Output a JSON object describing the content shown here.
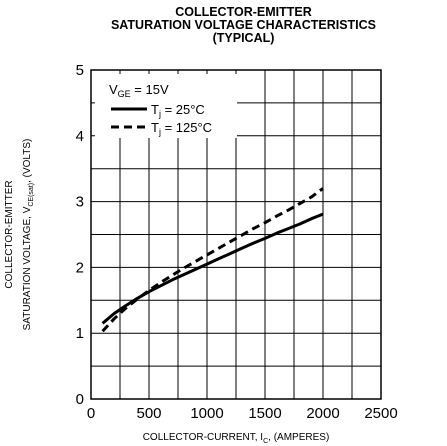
{
  "chart_data": {
    "type": "line",
    "title": [
      "COLLECTOR-EMITTER",
      "SATURATION VOLTAGE CHARACTERISTICS",
      "(TYPICAL)"
    ],
    "xlabel": {
      "main": "COLLECTOR-CURRENT, I",
      "sub": "C",
      "tail": ", (AMPERES)"
    },
    "ylabel": {
      "line1": "COLLECTOR-EMITTER",
      "line2_main": "SATURATION VOLTAGE, V",
      "line2_sub": "CE(sat)",
      "line2_tail": ", (VOLTS)"
    },
    "xlim": [
      0,
      2500
    ],
    "ylim": [
      0,
      5
    ],
    "x_ticks": [
      "0",
      "500",
      "1000",
      "1500",
      "2000",
      "2500"
    ],
    "y_ticks": [
      "0",
      "1",
      "2",
      "3",
      "4",
      "5"
    ],
    "grid": true,
    "legend_position": "top-left",
    "legend_header": {
      "main": "V",
      "sub": "GE",
      "tail": " = 15V"
    },
    "series": [
      {
        "name": {
          "main": "T",
          "sub": "j",
          "tail": " = 25°C"
        },
        "style": "solid",
        "points": [
          [
            100,
            1.15
          ],
          [
            200,
            1.3
          ],
          [
            300,
            1.42
          ],
          [
            400,
            1.53
          ],
          [
            500,
            1.63
          ],
          [
            600,
            1.72
          ],
          [
            700,
            1.81
          ],
          [
            800,
            1.89
          ],
          [
            900,
            1.97
          ],
          [
            1000,
            2.05
          ],
          [
            1100,
            2.13
          ],
          [
            1200,
            2.21
          ],
          [
            1300,
            2.29
          ],
          [
            1400,
            2.37
          ],
          [
            1500,
            2.44
          ],
          [
            1600,
            2.52
          ],
          [
            1700,
            2.59
          ],
          [
            1800,
            2.66
          ],
          [
            1900,
            2.74
          ],
          [
            2000,
            2.81
          ]
        ]
      },
      {
        "name": {
          "main": "T",
          "sub": "j",
          "tail": " = 125°C"
        },
        "style": "dashed",
        "points": [
          [
            100,
            1.03
          ],
          [
            200,
            1.22
          ],
          [
            300,
            1.38
          ],
          [
            400,
            1.52
          ],
          [
            500,
            1.65
          ],
          [
            600,
            1.77
          ],
          [
            700,
            1.88
          ],
          [
            800,
            1.99
          ],
          [
            900,
            2.09
          ],
          [
            1000,
            2.19
          ],
          [
            1100,
            2.29
          ],
          [
            1200,
            2.39
          ],
          [
            1300,
            2.49
          ],
          [
            1400,
            2.59
          ],
          [
            1500,
            2.68
          ],
          [
            1600,
            2.78
          ],
          [
            1700,
            2.87
          ],
          [
            1800,
            2.97
          ],
          [
            1900,
            3.07
          ],
          [
            2000,
            3.2
          ]
        ]
      }
    ]
  }
}
